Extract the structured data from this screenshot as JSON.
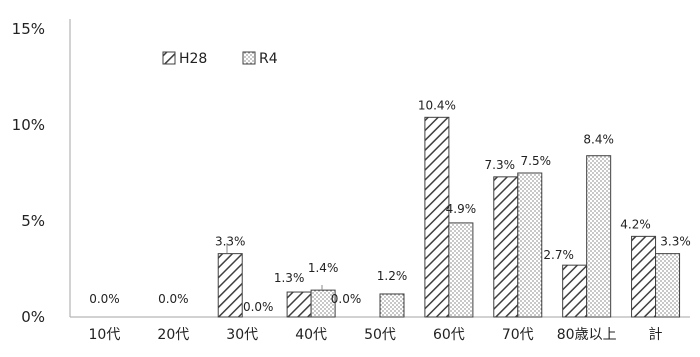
{
  "chart_data": {
    "type": "bar",
    "categories": [
      "10代",
      "20代",
      "30代",
      "40代",
      "50代",
      "60代",
      "70代",
      "80歳以上",
      "計"
    ],
    "series": [
      {
        "name": "H28",
        "values": [
          0.0,
          0.0,
          3.3,
          1.3,
          0.0,
          10.4,
          7.3,
          2.7,
          4.2
        ],
        "labels": [
          "0.0%",
          "0.0%",
          "3.3%",
          "1.3%",
          "0.0%",
          "10.4%",
          "7.3%",
          "2.7%",
          "4.2%"
        ]
      },
      {
        "name": "R4",
        "values": [
          0.0,
          0.0,
          0.0,
          1.4,
          1.2,
          4.9,
          7.5,
          8.4,
          3.3
        ],
        "labels": [
          "",
          "",
          "0.0%",
          "1.4%",
          "1.2%",
          "4.9%",
          "7.5%",
          "8.4%",
          "3.3%"
        ]
      }
    ],
    "yticks": [
      "0%",
      "5%",
      "10%",
      "15%"
    ],
    "ylim": [
      0,
      15
    ],
    "legend": "top-left, inside plot",
    "grid": false,
    "colors": {
      "axis": "#a6a6a6",
      "bar_stroke": "#404040",
      "text": "#222222"
    },
    "patterns": {
      "H28": "diagonal-hatch",
      "R4": "dots"
    }
  }
}
